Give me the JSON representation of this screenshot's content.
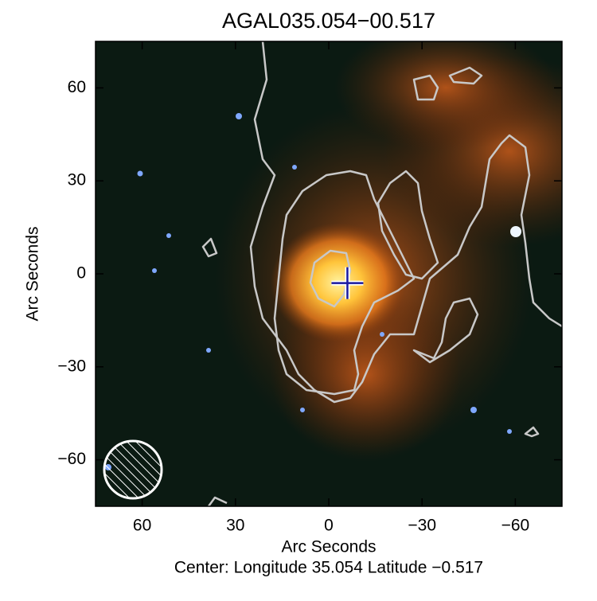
{
  "chart_data": {
    "type": "image",
    "title": "AGAL035.054−00.517",
    "xlabel": "Arc Seconds",
    "ylabel": "Arc Seconds",
    "subtitle": "Center:  Longitude 35.054 Latitude −0.517",
    "xlim": [
      75,
      -75
    ],
    "ylim": [
      -75,
      75
    ],
    "xticks": [
      60,
      30,
      0,
      {
        "value": -30,
        "label": "−30"
      },
      {
        "value": -60,
        "label": "−60"
      }
    ],
    "yticks": [
      {
        "value": -60,
        "label": "−60"
      },
      {
        "value": -30,
        "label": "−30"
      },
      0,
      30,
      60
    ],
    "marker": {
      "x": -6,
      "y": -3,
      "color": "#1a1aa0"
    }
  }
}
